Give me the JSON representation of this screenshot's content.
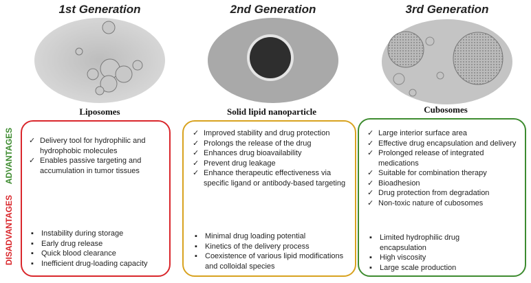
{
  "side_labels": {
    "advantages": "ADVANTAGES",
    "disadvantages": "DISADVANTAGES"
  },
  "columns": [
    {
      "generation": "1st  Generation",
      "label": "Liposomes",
      "advantages": [
        "Delivery tool for hydrophilic and hydrophobic molecules",
        "Enables passive targeting and accumulation in tumor tissues"
      ],
      "disadvantages": [
        "Instability during storage",
        "Early drug release",
        "Quick blood clearance",
        "Inefficient drug-loading capacity"
      ]
    },
    {
      "generation": "2nd Generation",
      "label": "Solid lipid nanoparticle",
      "advantages": [
        "Improved stability and drug protection",
        "Prolongs the release of the drug",
        "Enhances drug bioavailability",
        "Prevent drug leakage",
        "Enhance therapeutic effectiveness via specific ligand or antibody-based targeting"
      ],
      "disadvantages": [
        "Minimal drug loading potential",
        "Kinetics of the delivery process",
        "Coexistence of various lipid modifications and colloidal species"
      ]
    },
    {
      "generation": "3rd Generation",
      "label": "Cubosomes",
      "advantages": [
        "Large interior surface area",
        "Effective drug encapsulation and delivery",
        "Prolonged release of integrated medications",
        "Suitable for combination therapy",
        "Bioadhesion",
        "Drug protection from degradation",
        "Non-toxic nature of cubosomes"
      ],
      "disadvantages": [
        "Limited hydrophilic drug encapsulation",
        "High viscosity",
        "Large scale production"
      ]
    }
  ]
}
